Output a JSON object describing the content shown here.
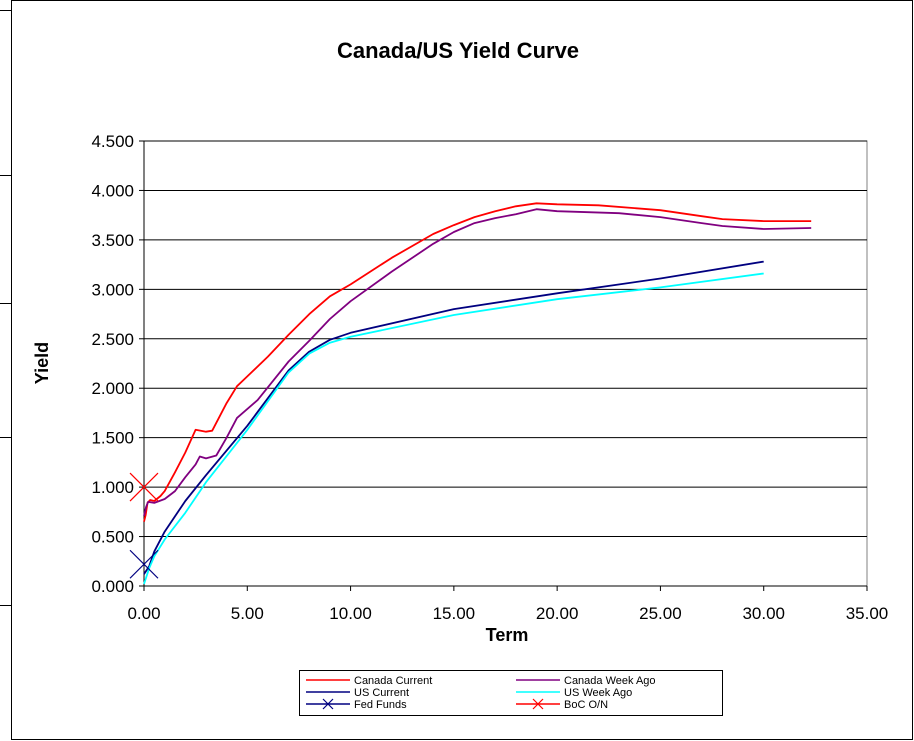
{
  "chart_data": {
    "type": "line",
    "title": "Canada/US Yield Curve",
    "xlabel": "Term",
    "ylabel": "Yield",
    "xlim": [
      0,
      35
    ],
    "ylim": [
      0,
      4.5
    ],
    "x_ticks": [
      "0.00",
      "5.00",
      "10.00",
      "15.00",
      "20.00",
      "25.00",
      "30.00",
      "35.00"
    ],
    "y_ticks": [
      "0.000",
      "0.500",
      "1.000",
      "1.500",
      "2.000",
      "2.500",
      "3.000",
      "3.500",
      "4.000",
      "4.500"
    ],
    "grid": "horizontal",
    "legend_position": "bottom",
    "series": [
      {
        "name": "Canada Current",
        "color": "#ff0000",
        "marker": "none",
        "points": [
          [
            0.0,
            0.65
          ],
          [
            0.08,
            0.72
          ],
          [
            0.17,
            0.84
          ],
          [
            0.3,
            0.87
          ],
          [
            0.5,
            0.86
          ],
          [
            0.8,
            0.91
          ],
          [
            1.0,
            0.96
          ],
          [
            1.5,
            1.15
          ],
          [
            2.0,
            1.35
          ],
          [
            2.5,
            1.58
          ],
          [
            3.0,
            1.56
          ],
          [
            3.3,
            1.57
          ],
          [
            4.0,
            1.85
          ],
          [
            4.5,
            2.02
          ],
          [
            5.0,
            2.12
          ],
          [
            6.0,
            2.32
          ],
          [
            7.0,
            2.54
          ],
          [
            8.0,
            2.75
          ],
          [
            9.0,
            2.93
          ],
          [
            10.0,
            3.05
          ],
          [
            12.0,
            3.32
          ],
          [
            14.0,
            3.56
          ],
          [
            15.0,
            3.65
          ],
          [
            16.0,
            3.73
          ],
          [
            17.0,
            3.79
          ],
          [
            18.0,
            3.84
          ],
          [
            19.0,
            3.87
          ],
          [
            20.0,
            3.86
          ],
          [
            22.0,
            3.85
          ],
          [
            25.0,
            3.8
          ],
          [
            27.0,
            3.74
          ],
          [
            28.0,
            3.71
          ],
          [
            30.0,
            3.69
          ],
          [
            32.3,
            3.69
          ]
        ]
      },
      {
        "name": "Canada Week Ago",
        "color": "#800080",
        "marker": "none",
        "points": [
          [
            0.0,
            0.71
          ],
          [
            0.1,
            0.8
          ],
          [
            0.2,
            0.85
          ],
          [
            0.5,
            0.84
          ],
          [
            1.0,
            0.88
          ],
          [
            1.5,
            0.96
          ],
          [
            2.0,
            1.1
          ],
          [
            2.5,
            1.23
          ],
          [
            2.7,
            1.31
          ],
          [
            3.0,
            1.29
          ],
          [
            3.5,
            1.32
          ],
          [
            4.0,
            1.5
          ],
          [
            4.5,
            1.7
          ],
          [
            5.5,
            1.88
          ],
          [
            7.0,
            2.27
          ],
          [
            8.0,
            2.48
          ],
          [
            9.0,
            2.7
          ],
          [
            10.0,
            2.88
          ],
          [
            12.0,
            3.18
          ],
          [
            14.0,
            3.46
          ],
          [
            15.0,
            3.58
          ],
          [
            16.0,
            3.67
          ],
          [
            17.0,
            3.72
          ],
          [
            18.0,
            3.76
          ],
          [
            19.0,
            3.81
          ],
          [
            20.0,
            3.79
          ],
          [
            23.0,
            3.77
          ],
          [
            25.0,
            3.73
          ],
          [
            27.0,
            3.67
          ],
          [
            28.0,
            3.64
          ],
          [
            30.0,
            3.61
          ],
          [
            32.3,
            3.62
          ]
        ]
      },
      {
        "name": "US Current",
        "color": "#000080",
        "marker": "none",
        "points": [
          [
            0.0,
            0.12
          ],
          [
            0.25,
            0.2
          ],
          [
            0.5,
            0.35
          ],
          [
            1.0,
            0.55
          ],
          [
            2.0,
            0.86
          ],
          [
            3.0,
            1.12
          ],
          [
            5.0,
            1.62
          ],
          [
            7.0,
            2.18
          ],
          [
            8.0,
            2.37
          ],
          [
            9.0,
            2.49
          ],
          [
            10.0,
            2.56
          ],
          [
            15.0,
            2.8
          ],
          [
            20.0,
            2.96
          ],
          [
            25.0,
            3.11
          ],
          [
            30.0,
            3.28
          ]
        ]
      },
      {
        "name": "US Week Ago",
        "color": "#00ffff",
        "marker": "none",
        "points": [
          [
            0.0,
            0.02
          ],
          [
            0.25,
            0.18
          ],
          [
            0.5,
            0.3
          ],
          [
            1.0,
            0.47
          ],
          [
            2.0,
            0.74
          ],
          [
            3.0,
            1.05
          ],
          [
            5.0,
            1.58
          ],
          [
            7.0,
            2.16
          ],
          [
            8.0,
            2.35
          ],
          [
            9.0,
            2.46
          ],
          [
            10.0,
            2.52
          ],
          [
            15.0,
            2.74
          ],
          [
            20.0,
            2.9
          ],
          [
            25.0,
            3.02
          ],
          [
            30.0,
            3.16
          ]
        ]
      },
      {
        "name": "Fed Funds",
        "color": "#000080",
        "marker": "x",
        "points": [
          [
            0.0,
            0.22
          ]
        ]
      },
      {
        "name": "BoC O/N",
        "color": "#ff0000",
        "marker": "x",
        "points": [
          [
            0.0,
            1.0
          ]
        ]
      }
    ]
  }
}
